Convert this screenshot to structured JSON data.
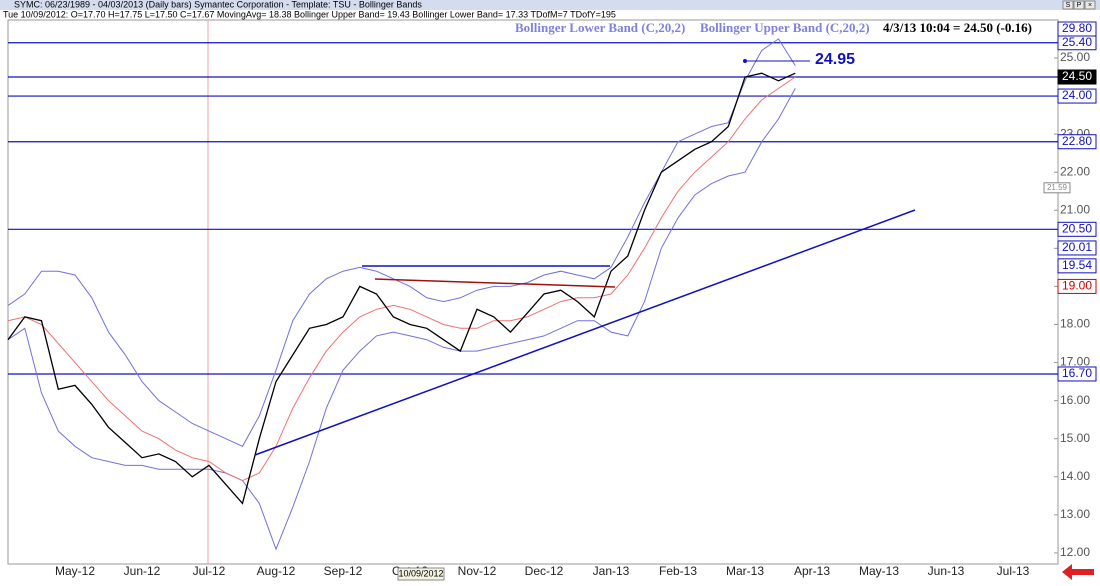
{
  "header": {
    "line1": "SYMC: 06/23/1989 - 04/03/2013  (Daily bars)  Symantec Corporation  -  Template: TSU - Bollinger Bands",
    "line2": "Tue  10/09/2012:  O=17.70  H=17.75  L=17.50  C=17.67  MovingAvg= 18.38  Bollinger Upper Band= 19.43  Bollinger Lower Band= 17.33  TDofM=7  TDofY=195",
    "buttons": [
      "S",
      "P",
      "×"
    ]
  },
  "chart_data": {
    "type": "line",
    "legend": [
      "Bollinger Lower Band (C,20,2)",
      "Bollinger Upper Band (C,20,2)"
    ],
    "last_quote": "4/3/13 10:04 = 24.50 (-0.16)",
    "annotation": "24.95",
    "cursor_date": "10/09/2012",
    "top_label": "29.80",
    "categories": [
      null,
      null,
      null,
      null,
      "May-12",
      null,
      null,
      null,
      "Jun-12",
      null,
      null,
      null,
      "Jul-12",
      null,
      null,
      null,
      "Aug-12",
      null,
      null,
      null,
      "Sep-12",
      null,
      null,
      null,
      "Oct-12",
      null,
      null,
      null,
      "Nov-12",
      null,
      null,
      null,
      "Dec-12",
      null,
      null,
      null,
      "Jan-13",
      null,
      null,
      null,
      "Feb-13",
      null,
      null,
      null,
      "Mar-13",
      null,
      null,
      null,
      "Apr-13",
      null,
      null,
      null,
      "May-13",
      null,
      null,
      null,
      "Jun-13",
      null,
      null,
      null,
      "Jul-13",
      null,
      null
    ],
    "series": [
      {
        "name": "Bollinger Upper Band (C,20,2)",
        "color": "#7070e0",
        "values": [
          18.5,
          18.8,
          19.4,
          19.4,
          19.3,
          18.7,
          17.8,
          17.2,
          16.5,
          16.0,
          15.7,
          15.4,
          15.2,
          15.0,
          14.8,
          15.6,
          16.8,
          18.1,
          18.8,
          19.2,
          19.4,
          19.5,
          19.4,
          19.2,
          19.0,
          18.7,
          18.6,
          18.7,
          18.9,
          19.0,
          19.0,
          19.1,
          19.3,
          19.4,
          19.3,
          19.2,
          19.5,
          20.3,
          21.2,
          22.0,
          22.8,
          23.0,
          23.2,
          23.3,
          24.4,
          25.2,
          25.5,
          24.8,
          null,
          null,
          null,
          null,
          null,
          null,
          null,
          null,
          null,
          null,
          null,
          null,
          null,
          null,
          null
        ]
      },
      {
        "name": "Bollinger Lower Band (C,20,2)",
        "color": "#7070e0",
        "values": [
          17.6,
          17.9,
          16.2,
          15.2,
          14.8,
          14.5,
          14.4,
          14.3,
          14.3,
          14.2,
          14.2,
          14.2,
          14.2,
          14.1,
          13.9,
          13.3,
          12.1,
          13.2,
          14.4,
          15.8,
          16.8,
          17.3,
          17.7,
          17.8,
          17.7,
          17.6,
          17.4,
          17.3,
          17.3,
          17.4,
          17.5,
          17.6,
          17.7,
          17.9,
          18.1,
          18.1,
          17.8,
          17.7,
          18.6,
          20.0,
          20.8,
          21.4,
          21.7,
          21.9,
          22.0,
          22.8,
          23.4,
          24.2,
          null,
          null,
          null,
          null,
          null,
          null,
          null,
          null,
          null,
          null,
          null,
          null,
          null,
          null,
          null
        ]
      },
      {
        "name": "MovingAvg",
        "color": "#f07070",
        "values": [
          18.1,
          18.2,
          18.0,
          17.5,
          17.0,
          16.5,
          16.0,
          15.6,
          15.2,
          15.0,
          14.7,
          14.5,
          14.4,
          14.1,
          13.9,
          14.1,
          14.8,
          15.8,
          16.6,
          17.3,
          17.8,
          18.2,
          18.4,
          18.5,
          18.4,
          18.2,
          18.0,
          17.9,
          17.9,
          18.1,
          18.1,
          18.2,
          18.4,
          18.6,
          18.7,
          18.7,
          18.8,
          19.3,
          20.0,
          20.8,
          21.5,
          22.0,
          22.4,
          22.8,
          23.4,
          23.9,
          24.2,
          24.5,
          null,
          null,
          null,
          null,
          null,
          null,
          null,
          null,
          null,
          null,
          null,
          null,
          null,
          null,
          null
        ]
      },
      {
        "name": "SYMC",
        "color": "#000000",
        "values": [
          17.6,
          18.2,
          18.1,
          16.3,
          16.4,
          15.9,
          15.3,
          14.9,
          14.5,
          14.6,
          14.4,
          14.0,
          14.3,
          13.8,
          13.3,
          15.0,
          16.5,
          17.2,
          17.9,
          18.0,
          18.2,
          19.0,
          18.8,
          18.2,
          18.0,
          17.9,
          17.6,
          17.3,
          18.4,
          18.2,
          17.8,
          18.3,
          18.8,
          18.9,
          18.6,
          18.2,
          19.4,
          19.8,
          21.0,
          22.0,
          22.3,
          22.6,
          22.8,
          23.2,
          24.5,
          24.6,
          24.4,
          24.6,
          null,
          null,
          null,
          null,
          null,
          null,
          null,
          null,
          null,
          null,
          null,
          null,
          null,
          null,
          null
        ]
      }
    ],
    "ylim": [
      11.42,
      26.05
    ],
    "yticks": [
      {
        "value": 12,
        "label": "12.00"
      },
      {
        "value": 13,
        "label": "13.00"
      },
      {
        "value": 14,
        "label": "14.00"
      },
      {
        "value": 15,
        "label": "15.00"
      },
      {
        "value": 16,
        "label": "16.00"
      },
      {
        "value": 17,
        "label": "17.00"
      },
      {
        "value": 18,
        "label": "18.00"
      },
      {
        "value": 19,
        "label": "19.00"
      },
      {
        "value": 20,
        "label": "20.00"
      },
      {
        "value": 21,
        "label": "21.00"
      },
      {
        "value": 22,
        "label": "22.00"
      },
      {
        "value": 23,
        "label": "23.00"
      },
      {
        "value": 24,
        "label": "24.00"
      },
      {
        "value": 25,
        "label": "25.00"
      }
    ],
    "horizontal_lines": [
      {
        "value": 25.4,
        "label": "25.40"
      },
      {
        "value": 24.5,
        "label": "24.50"
      },
      {
        "value": 24.0,
        "label": "24.00"
      },
      {
        "value": 22.8,
        "label": "22.80"
      },
      {
        "value": 20.5,
        "label": "20.50"
      },
      {
        "value": 16.7,
        "label": "16.70"
      }
    ],
    "price_labels": [
      {
        "value": 20.01,
        "label": "20.01",
        "color": "#1010c0"
      },
      {
        "value": 19.54,
        "label": "19.54",
        "color": "#1010c0"
      },
      {
        "value": 19.0,
        "label": "19.00",
        "color": "#d00000"
      },
      {
        "value": 21.59,
        "label": "21.59",
        "color": "#888888"
      }
    ]
  }
}
